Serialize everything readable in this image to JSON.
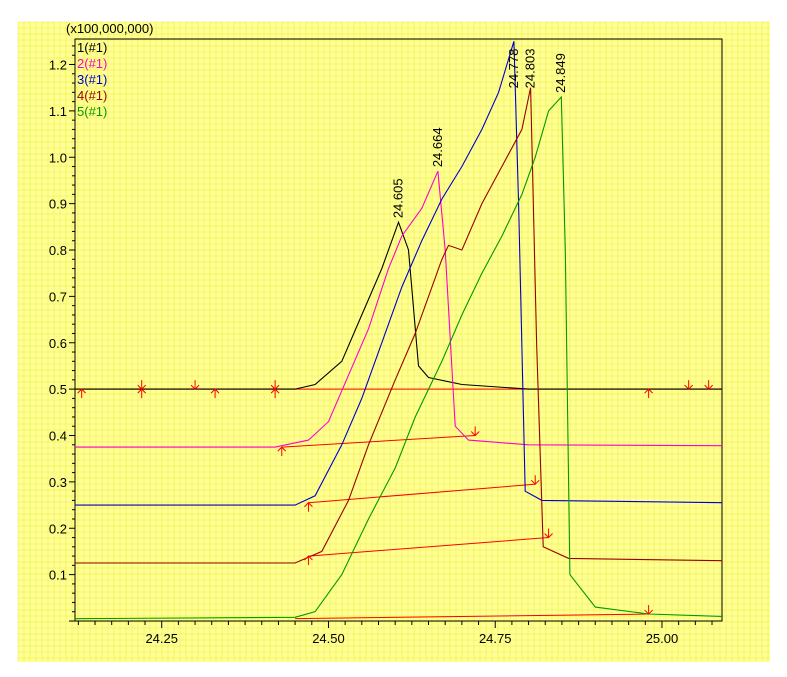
{
  "chart_data": {
    "type": "line",
    "multiplier_label": "(x100,000,000)",
    "xlim": [
      24.12,
      25.09
    ],
    "ylim": [
      0.0,
      1.255
    ],
    "x_ticks": [
      "24.25",
      "24.50",
      "24.75",
      "25.00"
    ],
    "x_tick_values": [
      24.25,
      24.5,
      24.75,
      25.0
    ],
    "y_ticks": [
      "0.1",
      "0.2",
      "0.3",
      "0.4",
      "0.5",
      "0.6",
      "0.7",
      "0.8",
      "0.9",
      "1.0",
      "1.1",
      "1.2"
    ],
    "y_tick_values": [
      0.1,
      0.2,
      0.3,
      0.4,
      0.5,
      0.6,
      0.7,
      0.8,
      0.9,
      1.0,
      1.1,
      1.2
    ],
    "grid": true,
    "background_color": "#ffff99",
    "legend": [
      {
        "id": "1",
        "text_before": "1",
        "text_paren": "(#1)",
        "number_color": "#000000",
        "paren_color": "#000000"
      },
      {
        "id": "2",
        "text_before": "2",
        "text_paren": "(#1)",
        "number_color": "#ff00cc",
        "paren_color": "#ff00cc"
      },
      {
        "id": "3",
        "text_before": "3",
        "text_paren": "(#1)",
        "number_color": "#0000cc",
        "paren_color": "#0000cc"
      },
      {
        "id": "4",
        "text_before": "4",
        "text_paren": "(#1)",
        "number_color": "#990000",
        "paren_color": "#990000"
      },
      {
        "id": "5",
        "text_before": "5",
        "text_paren": "(#1)",
        "number_color": "#009900",
        "paren_color": "#009900"
      }
    ],
    "series": [
      {
        "name": "1",
        "color": "#000000",
        "points": [
          [
            24.12,
            0.5
          ],
          [
            24.45,
            0.5
          ],
          [
            24.48,
            0.51
          ],
          [
            24.52,
            0.56
          ],
          [
            24.55,
            0.66
          ],
          [
            24.58,
            0.76
          ],
          [
            24.605,
            0.86
          ],
          [
            24.62,
            0.8
          ],
          [
            24.635,
            0.55
          ],
          [
            24.65,
            0.525
          ],
          [
            24.7,
            0.51
          ],
          [
            24.8,
            0.5
          ],
          [
            25.09,
            0.5
          ]
        ]
      },
      {
        "name": "2",
        "color": "#ff00cc",
        "points": [
          [
            24.12,
            0.375
          ],
          [
            24.42,
            0.375
          ],
          [
            24.47,
            0.39
          ],
          [
            24.5,
            0.43
          ],
          [
            24.53,
            0.53
          ],
          [
            24.56,
            0.63
          ],
          [
            24.59,
            0.76
          ],
          [
            24.61,
            0.83
          ],
          [
            24.64,
            0.89
          ],
          [
            24.664,
            0.97
          ],
          [
            24.675,
            0.8
          ],
          [
            24.69,
            0.42
          ],
          [
            24.71,
            0.39
          ],
          [
            24.8,
            0.38
          ],
          [
            25.09,
            0.378
          ]
        ]
      },
      {
        "name": "3",
        "color": "#0000cc",
        "points": [
          [
            24.12,
            0.25
          ],
          [
            24.45,
            0.25
          ],
          [
            24.48,
            0.27
          ],
          [
            24.52,
            0.38
          ],
          [
            24.55,
            0.48
          ],
          [
            24.58,
            0.6
          ],
          [
            24.61,
            0.72
          ],
          [
            24.64,
            0.82
          ],
          [
            24.67,
            0.91
          ],
          [
            24.7,
            0.98
          ],
          [
            24.73,
            1.06
          ],
          [
            24.755,
            1.14
          ],
          [
            24.778,
            1.25
          ],
          [
            24.785,
            0.9
          ],
          [
            24.795,
            0.28
          ],
          [
            24.82,
            0.26
          ],
          [
            25.09,
            0.255
          ]
        ]
      },
      {
        "name": "4",
        "color": "#990000",
        "points": [
          [
            24.12,
            0.125
          ],
          [
            24.45,
            0.125
          ],
          [
            24.49,
            0.15
          ],
          [
            24.53,
            0.26
          ],
          [
            24.56,
            0.38
          ],
          [
            24.6,
            0.52
          ],
          [
            24.63,
            0.62
          ],
          [
            24.67,
            0.78
          ],
          [
            24.68,
            0.81
          ],
          [
            24.7,
            0.8
          ],
          [
            24.73,
            0.9
          ],
          [
            24.76,
            0.98
          ],
          [
            24.79,
            1.06
          ],
          [
            24.803,
            1.15
          ],
          [
            24.812,
            0.6
          ],
          [
            24.822,
            0.16
          ],
          [
            24.86,
            0.135
          ],
          [
            25.09,
            0.13
          ]
        ]
      },
      {
        "name": "5",
        "color": "#009900",
        "points": [
          [
            24.12,
            0.005
          ],
          [
            24.45,
            0.008
          ],
          [
            24.48,
            0.02
          ],
          [
            24.52,
            0.1
          ],
          [
            24.56,
            0.22
          ],
          [
            24.6,
            0.33
          ],
          [
            24.63,
            0.44
          ],
          [
            24.67,
            0.56
          ],
          [
            24.7,
            0.66
          ],
          [
            24.73,
            0.75
          ],
          [
            24.76,
            0.83
          ],
          [
            24.79,
            0.92
          ],
          [
            24.81,
            1.0
          ],
          [
            24.83,
            1.1
          ],
          [
            24.849,
            1.13
          ],
          [
            24.855,
            0.8
          ],
          [
            24.862,
            0.1
          ],
          [
            24.9,
            0.03
          ],
          [
            24.98,
            0.015
          ],
          [
            25.09,
            0.01
          ]
        ]
      }
    ],
    "peak_labels": [
      {
        "text": "24.605",
        "x": 24.605,
        "y": 0.86
      },
      {
        "text": "24.664",
        "x": 24.664,
        "y": 0.97
      },
      {
        "text": "24.778",
        "x": 24.778,
        "y": 1.14
      },
      {
        "text": "24.803",
        "x": 24.803,
        "y": 1.14
      },
      {
        "text": "24.849",
        "x": 24.849,
        "y": 1.13
      }
    ],
    "baselines": [
      {
        "color": "#ff0000",
        "from": [
          24.12,
          0.5
        ],
        "to": [
          25.09,
          0.5
        ]
      },
      {
        "color": "#ff0000",
        "from": [
          24.43,
          0.375
        ],
        "to": [
          24.72,
          0.4
        ]
      },
      {
        "color": "#ff0000",
        "from": [
          24.47,
          0.255
        ],
        "to": [
          24.81,
          0.295
        ]
      },
      {
        "color": "#ff0000",
        "from": [
          24.47,
          0.14
        ],
        "to": [
          24.83,
          0.18
        ]
      },
      {
        "color": "#ff0000",
        "from": [
          24.45,
          0.005
        ],
        "to": [
          24.98,
          0.015
        ]
      }
    ],
    "markers": [
      {
        "x": 24.13,
        "y": 0.5,
        "dir": "up"
      },
      {
        "x": 24.22,
        "y": 0.5,
        "dir": "both"
      },
      {
        "x": 24.3,
        "y": 0.5,
        "dir": "down"
      },
      {
        "x": 24.33,
        "y": 0.5,
        "dir": "up"
      },
      {
        "x": 24.42,
        "y": 0.5,
        "dir": "both"
      },
      {
        "x": 24.98,
        "y": 0.5,
        "dir": "up"
      },
      {
        "x": 25.04,
        "y": 0.5,
        "dir": "down"
      },
      {
        "x": 25.07,
        "y": 0.5,
        "dir": "down"
      },
      {
        "x": 24.43,
        "y": 0.375,
        "dir": "up"
      },
      {
        "x": 24.72,
        "y": 0.4,
        "dir": "down"
      },
      {
        "x": 24.47,
        "y": 0.255,
        "dir": "up"
      },
      {
        "x": 24.81,
        "y": 0.295,
        "dir": "down"
      },
      {
        "x": 24.47,
        "y": 0.14,
        "dir": "up"
      },
      {
        "x": 24.83,
        "y": 0.18,
        "dir": "down"
      },
      {
        "x": 24.98,
        "y": 0.015,
        "dir": "down"
      }
    ]
  }
}
